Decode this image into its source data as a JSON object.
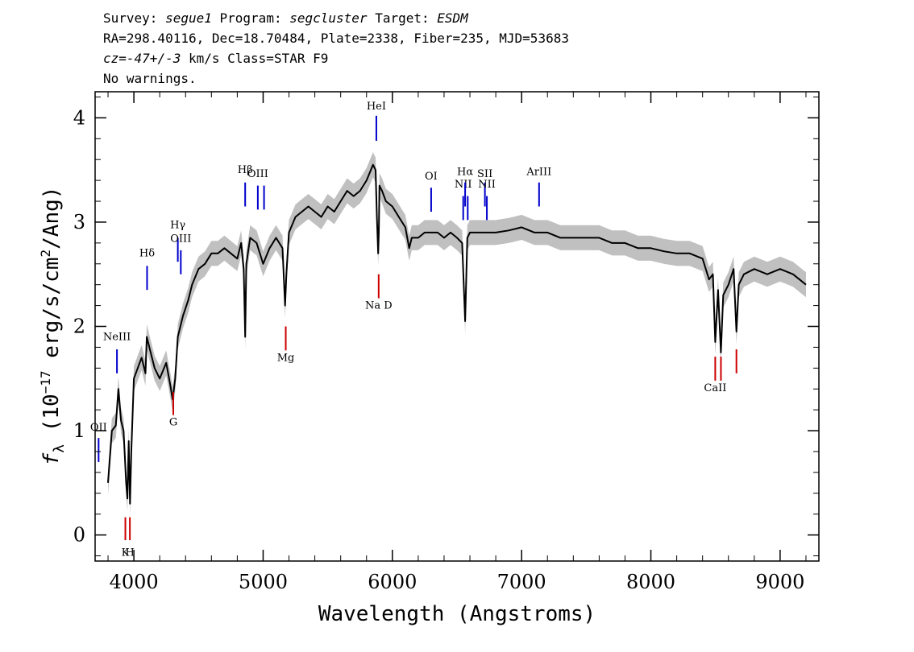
{
  "header": {
    "survey_label": "Survey:",
    "survey": "segue1",
    "program_label": "Program:",
    "program": "segcluster",
    "target_label": "Target:",
    "target": "ESDM",
    "line2": "RA=298.40116, Dec=18.70484, Plate=2338, Fiber=235, MJD=53683",
    "cz_label": "cz=",
    "cz_value": "-47+/-3",
    "cz_rest": " km/s Class=STAR F9",
    "line4": "No warnings."
  },
  "colors": {
    "emission": "#0000cc",
    "absorption": "#cc0000",
    "flux": "#000000",
    "error": "#c0c0c0"
  },
  "chart_data": {
    "type": "line",
    "xlabel": "Wavelength (Angstroms)",
    "ylabel": "f_λ (10^-17 erg/s/cm^2/Ang)",
    "ylabel_parts": {
      "f": "f",
      "sub": "λ",
      "open": " (10",
      "exp": "−17",
      "mid": " erg/s/cm",
      "exp2": "2",
      "close": "/Ang)"
    },
    "xlim": [
      3700,
      9300
    ],
    "ylim": [
      -0.25,
      4.25
    ],
    "x_ticks": [
      4000,
      5000,
      6000,
      7000,
      8000,
      9000
    ],
    "y_ticks": [
      0,
      1,
      2,
      3,
      4
    ],
    "x_tick_labels": [
      "4000",
      "5000",
      "6000",
      "7000",
      "8000",
      "9000"
    ],
    "y_tick_labels": [
      "0",
      "1",
      "2",
      "3",
      "4"
    ],
    "series": [
      {
        "style": "flux",
        "x": [
          3800,
          3830,
          3860,
          3880,
          3900,
          3920,
          3940,
          3950,
          3960,
          3970,
          3980,
          4000,
          4030,
          4060,
          4090,
          4100,
          4120,
          4160,
          4200,
          4250,
          4280,
          4300,
          4320,
          4340,
          4380,
          4420,
          4450,
          4500,
          4550,
          4600,
          4650,
          4700,
          4750,
          4800,
          4830,
          4850,
          4861,
          4870,
          4900,
          4950,
          5000,
          5050,
          5100,
          5150,
          5170,
          5180,
          5200,
          5250,
          5300,
          5350,
          5400,
          5450,
          5500,
          5550,
          5600,
          5650,
          5700,
          5750,
          5800,
          5850,
          5870,
          5880,
          5890,
          5895,
          5900,
          5920,
          5950,
          6000,
          6050,
          6100,
          6130,
          6150,
          6200,
          6250,
          6300,
          6350,
          6400,
          6450,
          6500,
          6540,
          6563,
          6580,
          6600,
          6650,
          6700,
          6750,
          6800,
          6900,
          7000,
          7100,
          7200,
          7300,
          7400,
          7500,
          7600,
          7700,
          7800,
          7900,
          8000,
          8100,
          8200,
          8300,
          8400,
          8450,
          8480,
          8498,
          8520,
          8542,
          8560,
          8600,
          8640,
          8662,
          8680,
          8720,
          8800,
          8900,
          9000,
          9100,
          9200
        ],
        "y": [
          0.5,
          1.0,
          1.05,
          1.4,
          1.1,
          1.0,
          0.5,
          0.35,
          0.9,
          0.3,
          0.8,
          1.5,
          1.6,
          1.7,
          1.55,
          1.9,
          1.8,
          1.6,
          1.5,
          1.65,
          1.45,
          1.3,
          1.5,
          1.9,
          2.1,
          2.25,
          2.4,
          2.55,
          2.6,
          2.7,
          2.7,
          2.75,
          2.7,
          2.65,
          2.8,
          2.55,
          1.9,
          2.6,
          2.85,
          2.8,
          2.6,
          2.75,
          2.85,
          2.75,
          2.2,
          2.5,
          2.9,
          3.05,
          3.1,
          3.15,
          3.1,
          3.05,
          3.15,
          3.1,
          3.2,
          3.3,
          3.25,
          3.3,
          3.4,
          3.55,
          3.5,
          3.05,
          2.7,
          2.9,
          3.35,
          3.3,
          3.2,
          3.15,
          3.05,
          2.95,
          2.75,
          2.85,
          2.85,
          2.9,
          2.9,
          2.9,
          2.85,
          2.9,
          2.85,
          2.8,
          2.05,
          2.85,
          2.9,
          2.9,
          2.9,
          2.9,
          2.9,
          2.92,
          2.95,
          2.9,
          2.9,
          2.85,
          2.85,
          2.85,
          2.85,
          2.8,
          2.8,
          2.75,
          2.75,
          2.72,
          2.7,
          2.7,
          2.65,
          2.45,
          2.5,
          1.85,
          2.35,
          1.75,
          2.3,
          2.4,
          2.55,
          1.95,
          2.4,
          2.5,
          2.55,
          2.5,
          2.55,
          2.5,
          2.4
        ]
      }
    ],
    "lines": [
      {
        "label": "NeIII",
        "x": 3869,
        "kind": "emission",
        "y0": 1.55,
        "y1": 1.78,
        "ly": 1.87
      },
      {
        "label": "OII",
        "x": 3727,
        "kind": "emission",
        "y0": 0.7,
        "y1": 0.93,
        "ly": 1.0
      },
      {
        "label": "Hδ",
        "x": 4102,
        "kind": "emission",
        "y0": 2.35,
        "y1": 2.58,
        "ly": 2.67
      },
      {
        "label": "Hγ",
        "x": 4340,
        "kind": "emission",
        "y0": 2.62,
        "y1": 2.85,
        "ly": 2.94
      },
      {
        "label": "OIII",
        "x": 4363,
        "kind": "emission",
        "y0": 2.5,
        "y1": 2.73,
        "ly": 2.81
      },
      {
        "label": "Hβ",
        "x": 4861,
        "kind": "emission",
        "y0": 3.15,
        "y1": 3.38,
        "ly": 3.47
      },
      {
        "label": "OIII",
        "x": 4959,
        "kind": "emission",
        "y0": 3.12,
        "y1": 3.35,
        "ly": 3.43
      },
      {
        "label": "OIII",
        "x": 5007,
        "kind": "emission",
        "y0": 3.12,
        "y1": 3.35,
        "ly": 0
      },
      {
        "label": "HeI",
        "x": 5876,
        "kind": "emission",
        "y0": 3.78,
        "y1": 4.02,
        "ly": 4.08
      },
      {
        "label": "OI",
        "x": 6300,
        "kind": "emission",
        "y0": 3.1,
        "y1": 3.33,
        "ly": 3.41
      },
      {
        "label": "NII",
        "x": 6548,
        "kind": "emission",
        "y0": 3.02,
        "y1": 3.25,
        "ly": 3.33
      },
      {
        "label": "Hα",
        "x": 6563,
        "kind": "emission",
        "y0": 3.15,
        "y1": 3.38,
        "ly": 3.45
      },
      {
        "label": "NII",
        "x": 6583,
        "kind": "emission",
        "y0": 3.02,
        "y1": 3.25,
        "ly": 0
      },
      {
        "label": "SII",
        "x": 6716,
        "kind": "emission",
        "y0": 3.15,
        "y1": 3.38,
        "ly": 3.43
      },
      {
        "label": "NII",
        "x": 6731,
        "kind": "emission",
        "y0": 3.02,
        "y1": 3.25,
        "ly": 3.33
      },
      {
        "label": "ArIII",
        "x": 7135,
        "kind": "emission",
        "y0": 3.15,
        "y1": 3.38,
        "ly": 3.45
      },
      {
        "label": "K",
        "x": 3934,
        "kind": "absorption",
        "y0": -0.05,
        "y1": 0.17,
        "ly": -0.2
      },
      {
        "label": "H",
        "x": 3969,
        "kind": "absorption",
        "y0": -0.05,
        "y1": 0.17,
        "ly": -0.2
      },
      {
        "label": "G",
        "x": 4305,
        "kind": "absorption",
        "y0": 1.15,
        "y1": 1.37,
        "ly": 1.05
      },
      {
        "label": "Mg",
        "x": 5175,
        "kind": "absorption",
        "y0": 1.77,
        "y1": 2.0,
        "ly": 1.67
      },
      {
        "label": "Na D",
        "x": 5894,
        "kind": "absorption",
        "y0": 2.27,
        "y1": 2.5,
        "ly": 2.17
      },
      {
        "label": "CaII",
        "x": 8498,
        "kind": "absorption",
        "y0": 1.48,
        "y1": 1.71,
        "ly": 1.38
      },
      {
        "label": "CaII",
        "x": 8542,
        "kind": "absorption",
        "y0": 1.48,
        "y1": 1.71,
        "ly": 0
      },
      {
        "label": "CaII",
        "x": 8662,
        "kind": "absorption",
        "y0": 1.55,
        "y1": 1.78,
        "ly": 0
      }
    ],
    "grid": false,
    "legend": "none"
  }
}
